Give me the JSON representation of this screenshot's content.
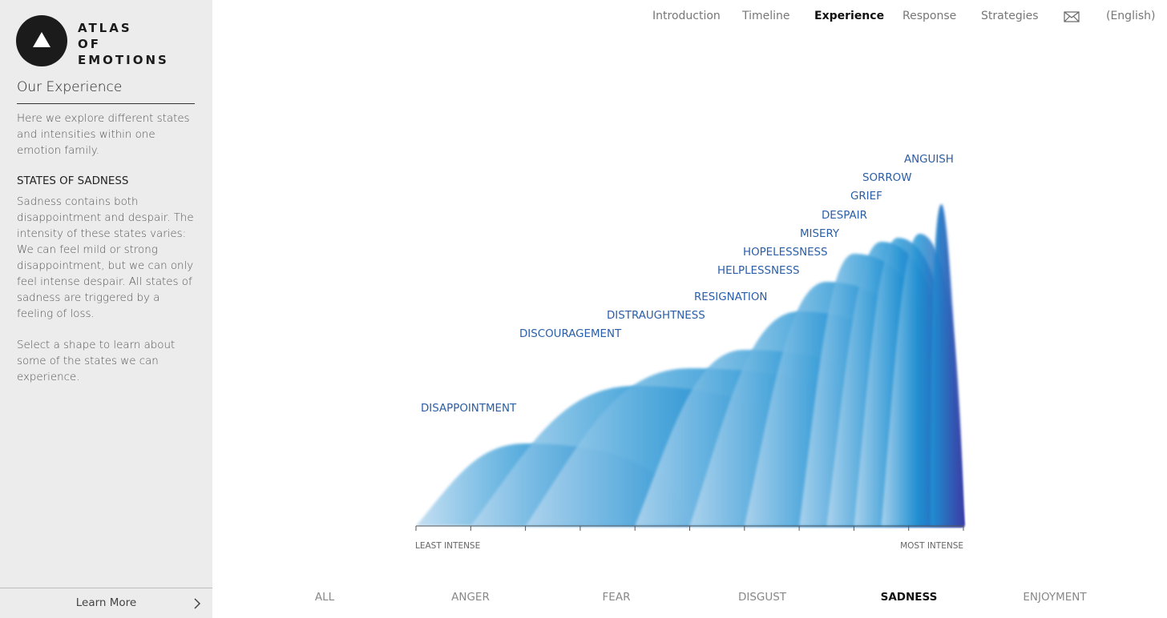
{
  "logo": {
    "lines": [
      "ATLAS",
      "OF",
      "EMOTIONS"
    ]
  },
  "sidebar": {
    "section_title": "Our Experience",
    "intro": "Here we explore different states and intensities within one emotion family.",
    "states_heading": "STATES OF SADNESS",
    "states_text": "Sadness contains both disappointment and despair. The intensity of these states varies: We can feel mild or strong disappointment, but we can only feel intense despair. All states of sadness are triggered by a feeling of loss.",
    "select_text": "Select a shape to learn about some of the states we can experience.",
    "learn_more": "Learn More"
  },
  "nav": {
    "items": [
      "Introduction",
      "Timeline",
      "Experience",
      "Response",
      "Strategies"
    ],
    "active": "Experience",
    "language": "(English)"
  },
  "chart_data": {
    "type": "area",
    "scale": {
      "start": "LEAST INTENSE",
      "end": "MOST INTENSE"
    },
    "states": [
      {
        "name": "DISAPPOINTMENT",
        "range": [
          0,
          5
        ],
        "peak": 2
      },
      {
        "name": "DISCOURAGEMENT",
        "range": [
          1,
          8
        ],
        "peak": 4
      },
      {
        "name": "DISTRAUGHTNESS",
        "range": [
          2,
          10
        ],
        "peak": 5
      },
      {
        "name": "RESIGNATION",
        "range": [
          4,
          10
        ],
        "peak": 6
      },
      {
        "name": "HELPLESSNESS",
        "range": [
          5,
          10
        ],
        "peak": 7
      },
      {
        "name": "HOPELESSNESS",
        "range": [
          6,
          10
        ],
        "peak": 7.5
      },
      {
        "name": "MISERY",
        "range": [
          7,
          10
        ],
        "peak": 8
      },
      {
        "name": "DESPAIR",
        "range": [
          7.5,
          10
        ],
        "peak": 8.5
      },
      {
        "name": "GRIEF",
        "range": [
          8,
          10
        ],
        "peak": 8.8
      },
      {
        "name": "SORROW",
        "range": [
          8.5,
          10
        ],
        "peak": 9.2
      },
      {
        "name": "ANGUISH",
        "range": [
          9.4,
          10
        ],
        "peak": 9.6
      }
    ]
  },
  "emotions": {
    "items": [
      "ALL",
      "ANGER",
      "FEAR",
      "DISGUST",
      "SADNESS",
      "ENJOYMENT"
    ],
    "active": "SADNESS"
  },
  "colors": {
    "accent_blue": "#1f92d3",
    "deep_blue": "#3a3fa6",
    "light_blue": "#b9d9f0",
    "label_blue": "#2a5ea8"
  }
}
